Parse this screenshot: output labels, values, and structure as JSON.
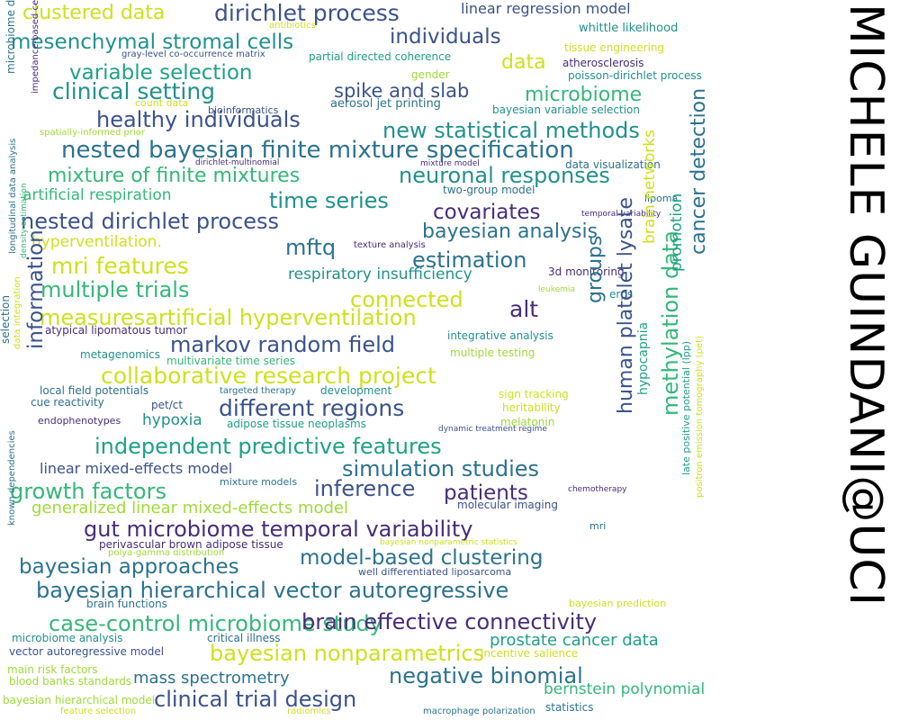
{
  "title": "MICHELE GUINDANI@UCI",
  "words": [
    "clustered data",
    "dirichlet process",
    "linear regression model",
    "antibiotics",
    "whittle likelihood",
    "mesenchymal stromal cells",
    "individuals",
    "gray-level co-occurrence matrix",
    "partial directed coherence",
    "tissue engineering",
    "data",
    "atherosclerosis",
    "variable selection",
    "gender",
    "poisson-dirichlet process",
    "clinical setting",
    "spike and slab",
    "microbiome",
    "count data",
    "aerosol jet printing",
    "bayesian variable selection",
    "healthy individuals",
    "bioinformatics",
    "new statistical methods",
    "spatially-informed prior",
    "nested bayesian finite mixture specification",
    "dirichlet-multinomial",
    "mixture model",
    "data visualization",
    "mixture of finite mixtures",
    "neuronal responses",
    "artificial respiration",
    "two-group model",
    "time series",
    "lipoma",
    "covariates",
    "temporal variability",
    "nested dirichlet process",
    "bayesian analysis",
    "hyperventilation.",
    "texture analysis",
    "mftq",
    "estimation",
    "mri features",
    "3d monitoring",
    "respiratory insufficiency",
    "multiple trials",
    "leukemia",
    "erps",
    "connected",
    "alt",
    "measuresartificial hyperventilation",
    "atypical lipomatous tumor",
    "integrative analysis",
    "markov random field",
    "metagenomics",
    "multivariate time series",
    "multiple testing",
    "collaborative research project",
    "local field potentials",
    "targeted therapy",
    "development",
    "sign tracking",
    "cue reactivity",
    "pet/ct",
    "heritability",
    "different regions",
    "hypoxia",
    "melatonin",
    "endophenotypes",
    "adipose tissue neoplasms",
    "dynamic treatment regime",
    "independent predictive features",
    "linear mixed-effects model",
    "simulation studies",
    "mixture models",
    "inference",
    "patients",
    "chemotherapy",
    "growth factors",
    "generalized linear mixed-effects model",
    "molecular imaging",
    "gut microbiome temporal variability",
    "mri",
    "perivascular brown adipose tissue",
    "bayesian nonparametric statistics",
    "polya-gamma distribution",
    "model-based clustering",
    "bayesian approaches",
    "well differentiated liposarcoma",
    "bayesian hierarchical vector autoregressive",
    "bayesian prediction",
    "brain functions",
    "case-control microbiome study",
    "brain effective connectivity",
    "microbiome analysis",
    "critical illness",
    "prostate cancer data",
    "bayesian nonparametrics",
    "vector autoregressive model",
    "incentive salience",
    "main risk factors",
    "negative binomial",
    "blood banks standards",
    "mass spectrometry",
    "bernstein polynomial",
    "bayesian hierarchical model",
    "clinical trial design",
    "feature selection",
    "radiomics",
    "macrophage polarization",
    "statistics",
    "impedance-based cell spectroscopy",
    "microbiome data",
    "longitudinal data analysis",
    "density estimation",
    "selection",
    "data integration",
    "information",
    "known dependencies",
    "groups",
    "human platelet lysate",
    "brain networks",
    "hypocapnia",
    "methylation data",
    "promotion",
    "cancer detection",
    "late positive potential (lpp)",
    "positron emission tomography (pet)"
  ],
  "colors": {
    "yellow": "#cde11d",
    "yellow_green": "#a0da39",
    "green": "#5ec962",
    "teal_green": "#35b779",
    "teal": "#1fa187",
    "blue_teal": "#21918c",
    "blue": "#2c728e",
    "slate": "#3b528b",
    "indigo": "#472d7b",
    "purple": "#440154"
  }
}
